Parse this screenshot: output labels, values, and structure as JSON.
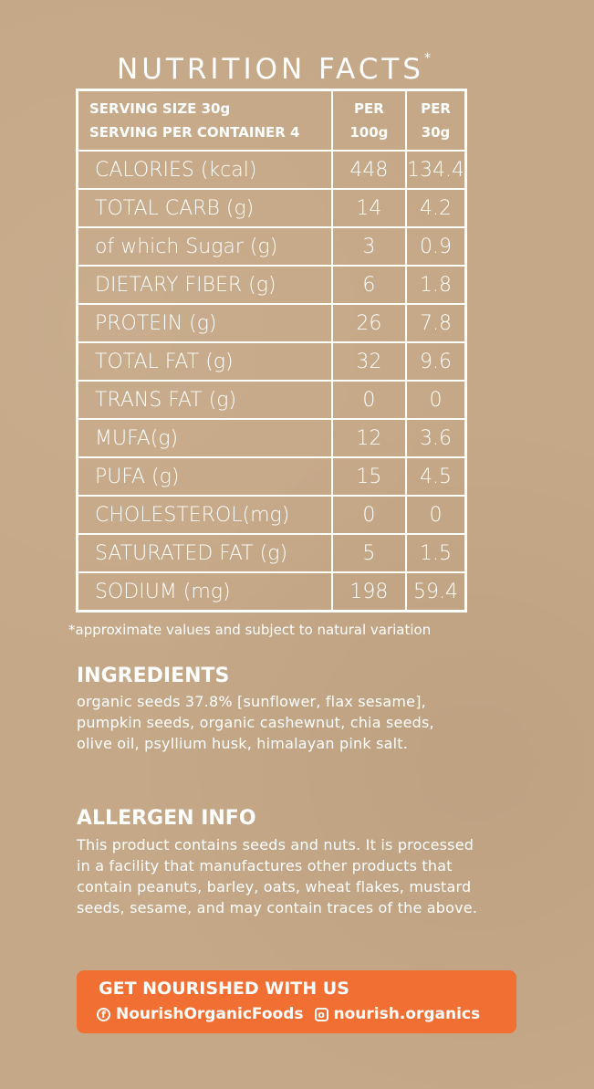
{
  "title": "NUTRITION FACTS",
  "title_mark": "*",
  "header": {
    "serving_size": "SERVING SIZE 30g",
    "servings": "SERVING PER CONTAINER 4",
    "col1": [
      "PER",
      "100g"
    ],
    "col2": [
      "PER",
      "30g"
    ]
  },
  "rows": [
    {
      "label": "CALORIES (kcal)",
      "per100": "448",
      "per30": "134.4"
    },
    {
      "label": "TOTAL CARB (g)",
      "per100": "14",
      "per30": "4.2"
    },
    {
      "label": "of which Sugar (g)",
      "per100": "3",
      "per30": "0.9"
    },
    {
      "label": "DIETARY FIBER (g)",
      "per100": "6",
      "per30": "1.8"
    },
    {
      "label": "PROTEIN (g)",
      "per100": "26",
      "per30": "7.8"
    },
    {
      "label": "TOTAL FAT (g)",
      "per100": "32",
      "per30": "9.6"
    },
    {
      "label": "TRANS FAT (g)",
      "per100": "0",
      "per30": "0"
    },
    {
      "label": "MUFA(g)",
      "per100": "12",
      "per30": "3.6"
    },
    {
      "label": "PUFA (g)",
      "per100": "15",
      "per30": "4.5"
    },
    {
      "label": "CHOLESTEROL(mg)",
      "per100": "0",
      "per30": "0"
    },
    {
      "label": "SATURATED FAT (g)",
      "per100": "5",
      "per30": "1.5"
    },
    {
      "label": "SODIUM (mg)",
      "per100": "198",
      "per30": "59.4"
    }
  ],
  "note": "*approximate values and subject to natural variation",
  "ingredients": {
    "heading": "INGREDIENTS",
    "text": "organic seeds 37.8% [sunflower, flax sesame], pumpkin seeds, organic cashewnut, chia seeds, olive oil, psyllium husk, himalayan pink salt."
  },
  "allergen": {
    "heading": "ALLERGEN INFO",
    "text": "This product contains seeds and nuts. It is processed in a facility that manufactures other products that contain peanuts, barley, oats, wheat flakes, mustard seeds, sesame, and may contain traces of the above."
  },
  "cta": {
    "heading": "GET NOURISHED WITH US",
    "facebook": "NourishOrganicFoods",
    "instagram": "nourish.organics",
    "facebook_icon": "facebook-icon",
    "instagram_icon": "instagram-icon",
    "color": "#f26f33"
  }
}
